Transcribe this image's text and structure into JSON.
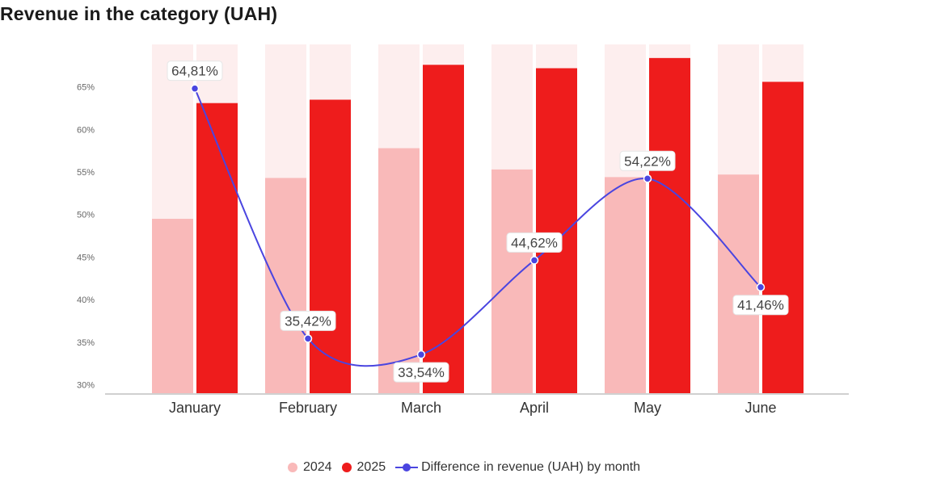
{
  "chart_data": {
    "type": "bar",
    "title": "Revenue in the category (UAH)",
    "categories": [
      "January",
      "February",
      "March",
      "April",
      "May",
      "June"
    ],
    "y_ticks": [
      "30%",
      "35%",
      "40%",
      "45%",
      "50%",
      "55%",
      "60%",
      "65%"
    ],
    "ylim": [
      29,
      70
    ],
    "grid": false,
    "legend_position": "bottom",
    "series": [
      {
        "name": "2024",
        "type": "bar",
        "color": "#f9b9b9",
        "values": [
          49.5,
          54.3,
          57.8,
          55.3,
          54.4,
          54.7
        ]
      },
      {
        "name": "2025",
        "type": "bar",
        "color": "#ee1c1c",
        "values": [
          63.1,
          63.5,
          67.6,
          67.2,
          68.4,
          65.6
        ]
      },
      {
        "name": "Difference in revenue (UAH) by month",
        "type": "line",
        "color": "#4a45e0",
        "values": [
          64.81,
          35.42,
          33.54,
          44.62,
          54.22,
          41.46
        ],
        "labels": [
          "64,81%",
          "35,42%",
          "33,54%",
          "44,62%",
          "54,22%",
          "41,46%"
        ]
      }
    ],
    "background_band_color": "#fdeeee"
  }
}
